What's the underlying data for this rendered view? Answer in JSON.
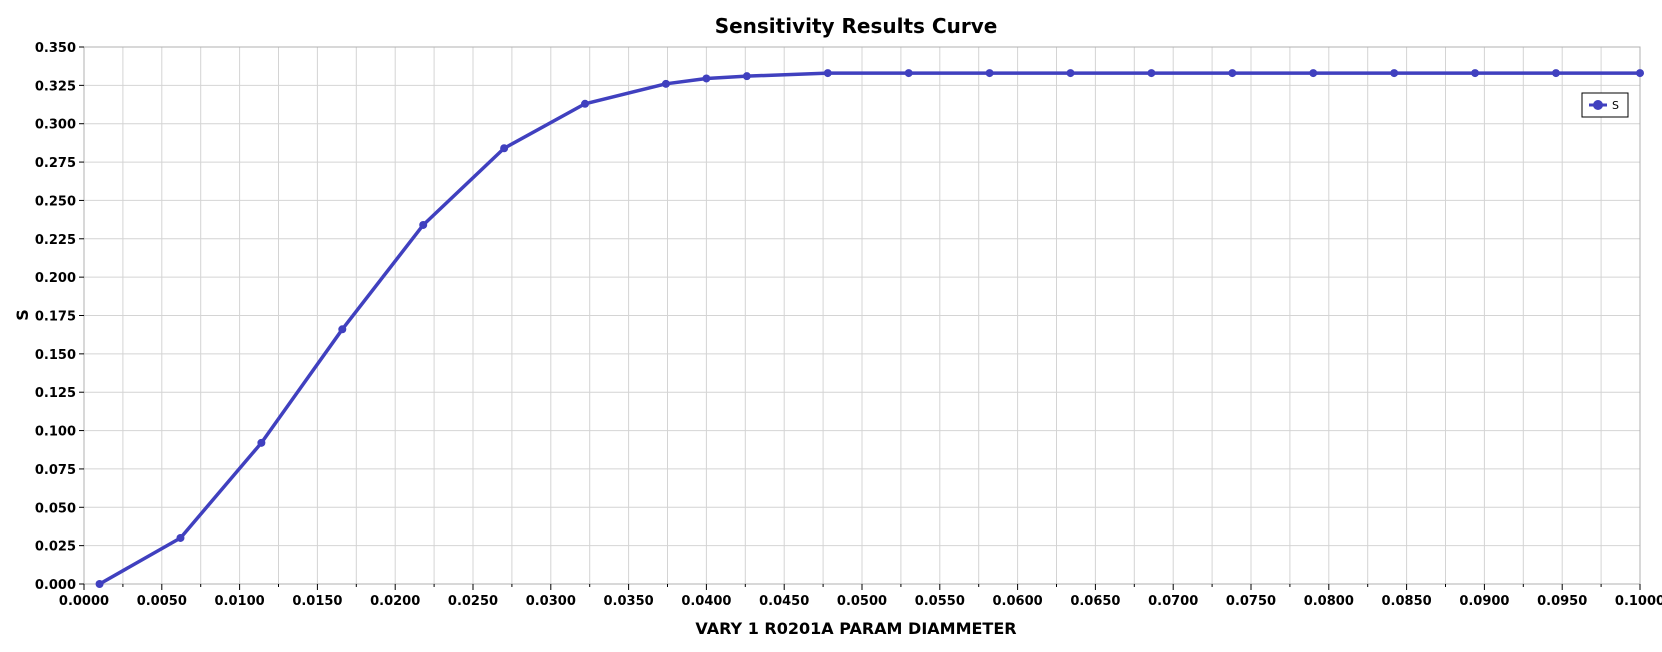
{
  "chart_data": {
    "type": "line",
    "title": "Sensitivity Results Curve",
    "xlabel": "VARY   1 R0201A PARAM DIAMMETER",
    "ylabel": "S",
    "xlim": [
      0.0,
      0.1
    ],
    "ylim": [
      0.0,
      0.35
    ],
    "x_ticks": [
      "0.0000",
      "0.0050",
      "0.0100",
      "0.0150",
      "0.0200",
      "0.0250",
      "0.0300",
      "0.0350",
      "0.0400",
      "0.0450",
      "0.0500",
      "0.0550",
      "0.0600",
      "0.0650",
      "0.0700",
      "0.0750",
      "0.0800",
      "0.0850",
      "0.0900",
      "0.0950",
      "0.1000"
    ],
    "y_ticks": [
      "0.000",
      "0.025",
      "0.050",
      "0.075",
      "0.100",
      "0.125",
      "0.150",
      "0.175",
      "0.200",
      "0.225",
      "0.250",
      "0.275",
      "0.300",
      "0.325",
      "0.350"
    ],
    "grid": true,
    "legend_position": "top-right",
    "series": [
      {
        "name": "S",
        "color": "#4040bf",
        "x": [
          0.001,
          0.0062,
          0.0114,
          0.0166,
          0.0218,
          0.027,
          0.0322,
          0.0374,
          0.04,
          0.0426,
          0.0478,
          0.053,
          0.0582,
          0.0634,
          0.0686,
          0.0738,
          0.079,
          0.0842,
          0.0894,
          0.0946,
          0.1
        ],
        "y": [
          0.0,
          0.03,
          0.092,
          0.166,
          0.234,
          0.284,
          0.313,
          0.326,
          0.3295,
          0.331,
          0.333,
          0.333,
          0.333,
          0.333,
          0.333,
          0.333,
          0.333,
          0.333,
          0.333,
          0.333,
          0.333
        ]
      }
    ]
  }
}
